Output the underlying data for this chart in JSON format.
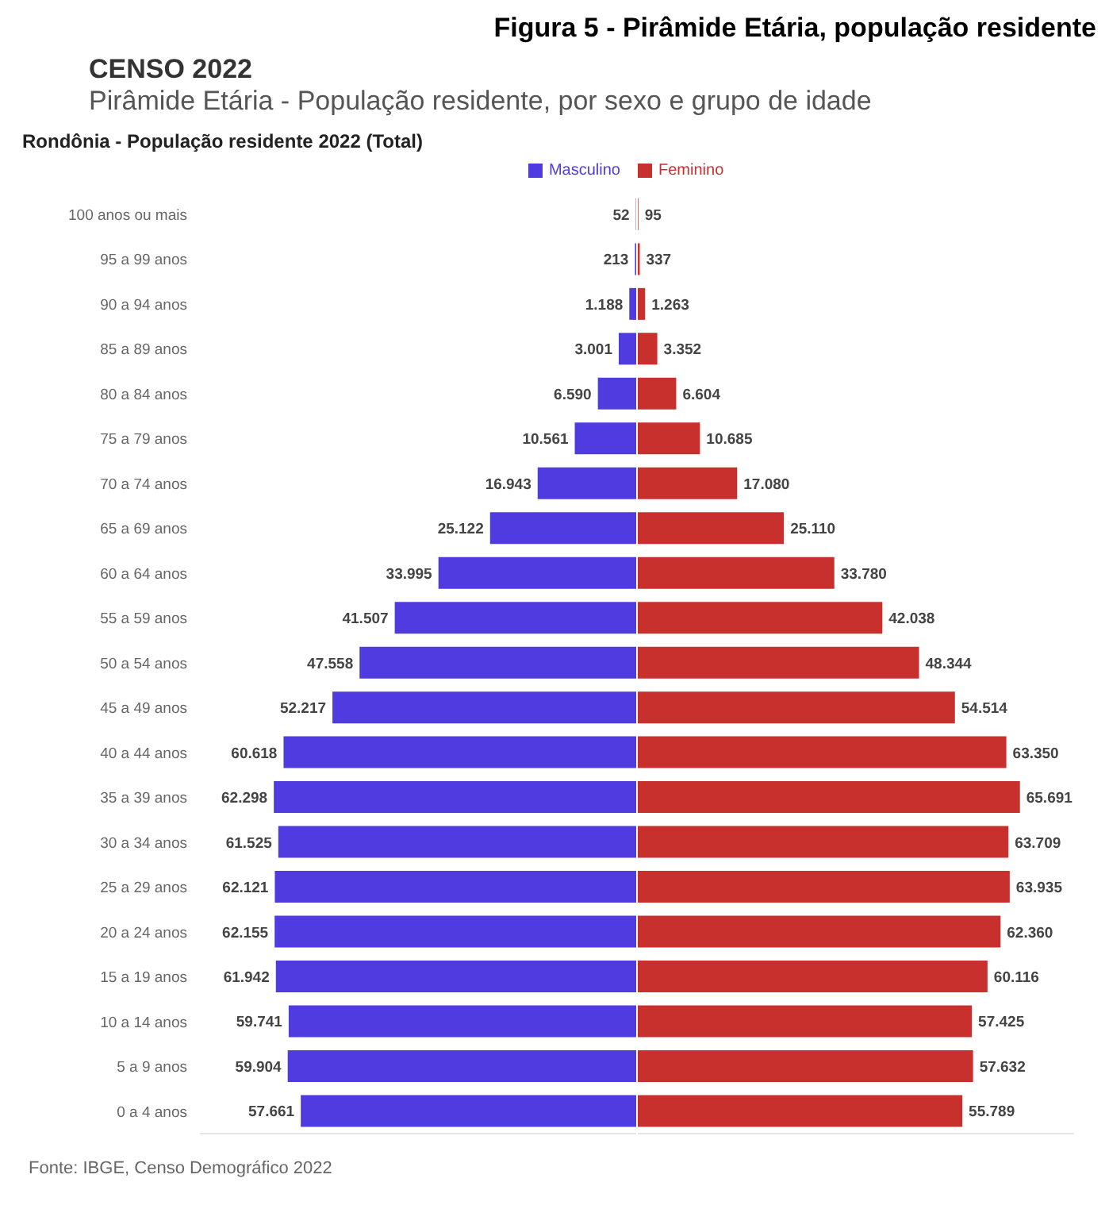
{
  "chart_data": [
    {
      "type": "bar",
      "orientation": "horizontal",
      "title": "CENSO 2022",
      "subtitle": "Pirâmide Etária - População residente, por sexo e grupo de idade",
      "annotations": [
        "Figura 5 - Pirâmide Etária, população residente",
        "Rondônia - População residente 2022 (Total)",
        "Fonte: IBGE, Censo Demográfico 2022"
      ],
      "categories": [
        "100 anos ou mais",
        "95 a 99 anos",
        "90 a 94 anos",
        "85 a 89 anos",
        "80 a 84 anos",
        "75 a 79 anos",
        "70 a 74 anos",
        "65 a 69 anos",
        "60 a 64 anos",
        "55 a 59 anos",
        "50 a 54 anos",
        "45 a 49 anos",
        "40 a 44 anos",
        "35 a 39 anos",
        "30 a 34 anos",
        "25 a 29 anos",
        "20 a 24 anos",
        "15 a 19 anos",
        "10 a 14 anos",
        "5 a 9 anos",
        "0 a 4 anos"
      ],
      "series": [
        {
          "name": "Masculino",
          "color": "#4f3be0",
          "values": [
            52,
            213,
            1188,
            3001,
            6590,
            10561,
            16943,
            25122,
            33995,
            41507,
            47558,
            52217,
            60618,
            62298,
            61525,
            62121,
            62155,
            61942,
            59741,
            59904,
            57661
          ],
          "value_labels": [
            "52",
            "213",
            "1.188",
            "3.001",
            "6.590",
            "10.561",
            "16.943",
            "25.122",
            "33.995",
            "41.507",
            "47.558",
            "52.217",
            "60.618",
            "62.298",
            "61.525",
            "62.121",
            "62.155",
            "61.942",
            "59.741",
            "59.904",
            "57.661"
          ]
        }
      ],
      "xlim": [
        75000,
        0
      ],
      "tick_labels": "y",
      "legend": "top right"
    },
    {
      "type": "bar",
      "orientation": "horizontal",
      "categories": [
        null,
        null,
        null,
        null,
        null,
        null,
        null,
        null,
        null,
        null,
        null,
        null,
        null,
        null,
        null,
        null,
        null,
        null,
        null,
        null,
        null
      ],
      "series": [
        {
          "name": "Feminino",
          "color": "#c8302e",
          "values": [
            95,
            337,
            1263,
            3352,
            6604,
            10685,
            17080,
            25110,
            33780,
            42038,
            48344,
            54514,
            63350,
            65691,
            63709,
            63935,
            62360,
            60116,
            57425,
            57632,
            55789
          ],
          "value_labels": [
            "95",
            "337",
            "1.263",
            "3.352",
            "6.604",
            "10.685",
            "17.080",
            "25.110",
            "33.780",
            "42.038",
            "48.344",
            "54.514",
            "63.350",
            "65.691",
            "63.709",
            "63.935",
            "62.360",
            "60.116",
            "57.425",
            "57.632",
            "55.789"
          ]
        }
      ],
      "xlim": [
        0,
        75000
      ],
      "tick_labels": false,
      "legend": "top left"
    }
  ]
}
